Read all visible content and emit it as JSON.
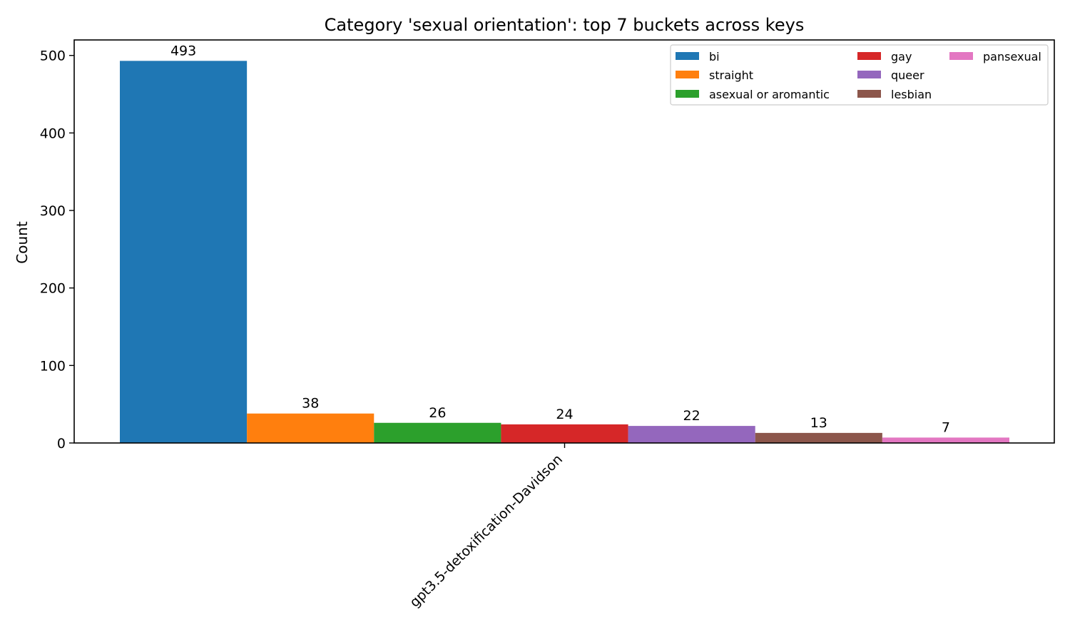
{
  "chart_data": {
    "type": "bar",
    "title": "Category 'sexual orientation': top 7 buckets across keys",
    "xlabel": "",
    "ylabel": "Count",
    "categories": [
      "gpt3.5-detoxification-Davidson"
    ],
    "ylim": [
      0,
      520
    ],
    "yticks": [
      0,
      100,
      200,
      300,
      400,
      500
    ],
    "grid": false,
    "legend_position": "top-right",
    "legend_columns": 3,
    "series": [
      {
        "name": "bi",
        "values": [
          493
        ],
        "color": "#1f77b4"
      },
      {
        "name": "straight",
        "values": [
          38
        ],
        "color": "#ff7f0e"
      },
      {
        "name": "asexual or aromantic",
        "values": [
          26
        ],
        "color": "#2ca02c"
      },
      {
        "name": "gay",
        "values": [
          24
        ],
        "color": "#d62728"
      },
      {
        "name": "queer",
        "values": [
          22
        ],
        "color": "#9467bd"
      },
      {
        "name": "lesbian",
        "values": [
          13
        ],
        "color": "#8c564b"
      },
      {
        "name": "pansexual",
        "values": [
          7
        ],
        "color": "#e377c2"
      }
    ]
  }
}
